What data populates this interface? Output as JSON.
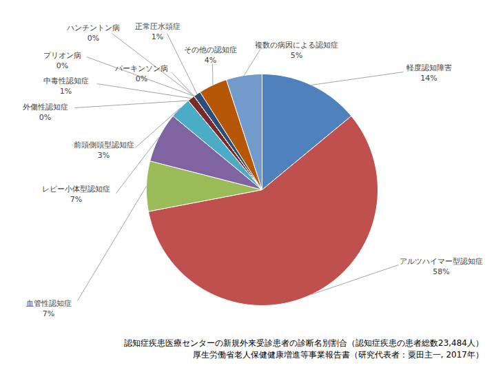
{
  "chart_data": {
    "type": "pie",
    "title": "認知症疾患医療センターの新規外来受診患者の診断名別割合（認知症疾患の患者総数23,484人）",
    "subtitle": "厚生労働省老人保健健康増進等事業報告書（研究代表者：粟田主一, 2017年）",
    "categories": [
      "軽度認知障害",
      "アルツハイマー型認知症",
      "血管性認知症",
      "レビー小体型認知症",
      "前頭側頭型認知症",
      "外傷性認知症",
      "中毒性認知症",
      "プリオン病",
      "ハンチントン病",
      "パーキンソン病",
      "正常圧水頭症",
      "その他の認知症",
      "複数の病因による認知症"
    ],
    "values": [
      14,
      58,
      7,
      7,
      3,
      0,
      1,
      0,
      0,
      0,
      1,
      4,
      5
    ],
    "value_labels": [
      "14%",
      "58%",
      "7%",
      "7%",
      "3%",
      "0%",
      "1%",
      "0%",
      "0%",
      "0%",
      "1%",
      "4%",
      "5%"
    ],
    "colors": [
      "#4f81bd",
      "#c0504d",
      "#9bbb59",
      "#8064a2",
      "#4bacc6",
      "#1f497d",
      "#772c2a",
      "#5f7530",
      "#4d3b62",
      "#276a7c",
      "#2c4d75",
      "#b65708",
      "#729aca"
    ],
    "data_labels": true
  }
}
